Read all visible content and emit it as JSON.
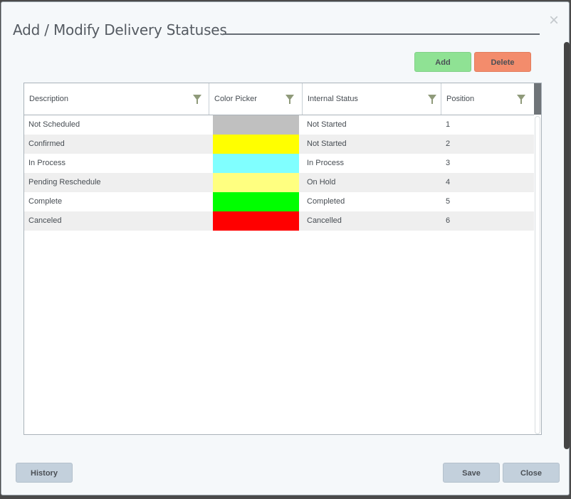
{
  "dialog": {
    "title": "Add / Modify Delivery Statuses",
    "close_glyph": "×"
  },
  "toolbar": {
    "add_label": "Add",
    "delete_label": "Delete"
  },
  "grid": {
    "columns": [
      {
        "label": "Description"
      },
      {
        "label": "Color Picker"
      },
      {
        "label": "Internal Status"
      },
      {
        "label": "Position"
      }
    ],
    "rows": [
      {
        "description": "Not Scheduled",
        "color": "#c0c0c0",
        "internal_status": "Not Started",
        "position": "1"
      },
      {
        "description": "Confirmed",
        "color": "#ffff00",
        "internal_status": "Not Started",
        "position": "2"
      },
      {
        "description": "In Process",
        "color": "#80ffff",
        "internal_status": "In Process",
        "position": "3"
      },
      {
        "description": "Pending Reschedule",
        "color": "#ffff80",
        "internal_status": "On Hold",
        "position": "4"
      },
      {
        "description": "Complete",
        "color": "#00ff00",
        "internal_status": "Completed",
        "position": "5"
      },
      {
        "description": "Canceled",
        "color": "#ff0000",
        "internal_status": "Cancelled",
        "position": "6"
      }
    ]
  },
  "footer": {
    "history_label": "History",
    "save_label": "Save",
    "close_label": "Close"
  },
  "colors": {
    "add_button": "#8fe294",
    "delete_button": "#f38c6c",
    "secondary_button": "#c3d0dc"
  },
  "icons": {
    "filter": "filter-icon",
    "close": "close-icon"
  }
}
